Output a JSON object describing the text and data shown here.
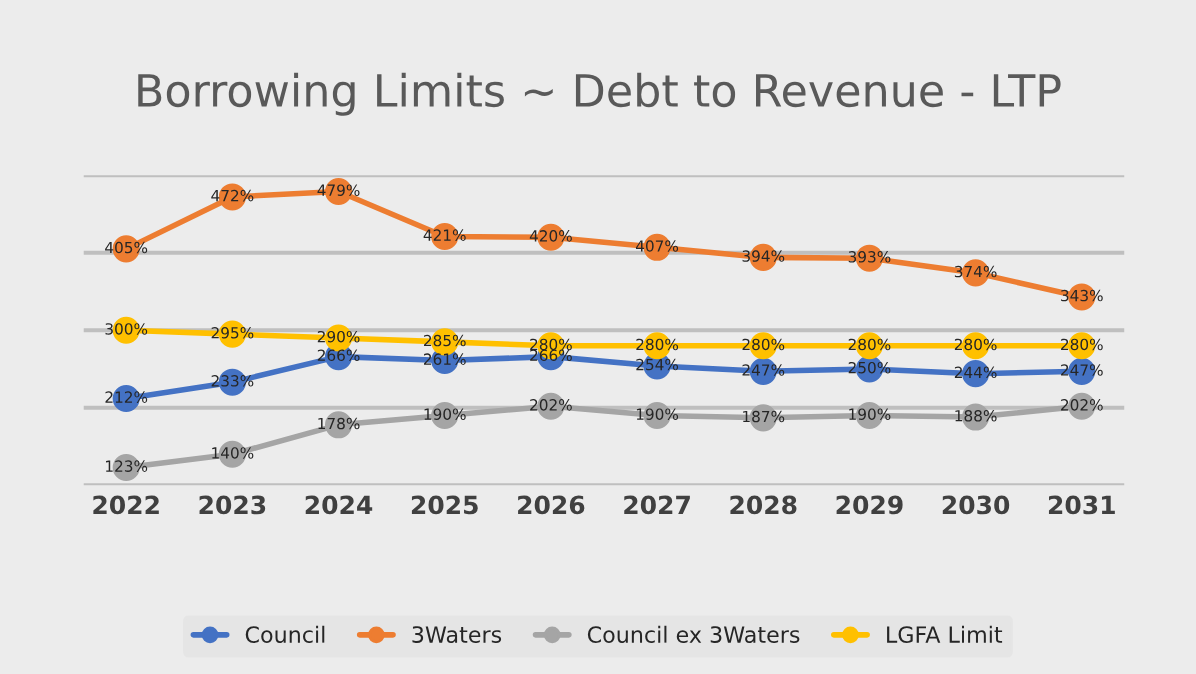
{
  "chart_data": {
    "type": "line",
    "title": "Borrowing Limits ~ Debt to Revenue - LTP",
    "categories": [
      "2022",
      "2023",
      "2024",
      "2025",
      "2026",
      "2027",
      "2028",
      "2029",
      "2030",
      "2031"
    ],
    "series": [
      {
        "name": "Council",
        "color": "#4472c4",
        "values": [
          212,
          233,
          266,
          261,
          266,
          254,
          247,
          250,
          244,
          247
        ],
        "value_labels": [
          "212%",
          "233%",
          "266%",
          "261%",
          "266%",
          "254%",
          "247%",
          "250%",
          "244%",
          "247%"
        ]
      },
      {
        "name": "3Waters",
        "color": "#ed7d31",
        "values": [
          405,
          472,
          479,
          421,
          420,
          407,
          394,
          393,
          374,
          343
        ],
        "value_labels": [
          "405%",
          "472%",
          "479%",
          "421%",
          "420%",
          "407%",
          "394%",
          "393%",
          "374%",
          "343%"
        ]
      },
      {
        "name": "Council ex 3Waters",
        "color": "#a5a5a5",
        "values": [
          123,
          140,
          178,
          190,
          202,
          190,
          187,
          190,
          188,
          202
        ],
        "value_labels": [
          "123%",
          "140%",
          "178%",
          "190%",
          "202%",
          "190%",
          "187%",
          "190%",
          "188%",
          "202%"
        ]
      },
      {
        "name": "LGFA Limit",
        "color": "#ffc000",
        "values": [
          300,
          295,
          290,
          285,
          280,
          280,
          280,
          280,
          280,
          280
        ],
        "value_labels": [
          "300%",
          "295%",
          "290%",
          "285%",
          "280%",
          "280%",
          "280%",
          "280%",
          "280%",
          "280%"
        ]
      }
    ],
    "ylim": [
      100,
      500
    ],
    "yticks": [
      {
        "value": 100,
        "label": null
      },
      {
        "value": 200,
        "label": null
      },
      {
        "value": 300,
        "label": null
      },
      {
        "value": 400,
        "label": null
      },
      {
        "value": 500,
        "label": null
      }
    ],
    "grid": "y",
    "legend": "bottom",
    "marker": "circle",
    "line_style": "solid",
    "tick_labels": "x"
  }
}
